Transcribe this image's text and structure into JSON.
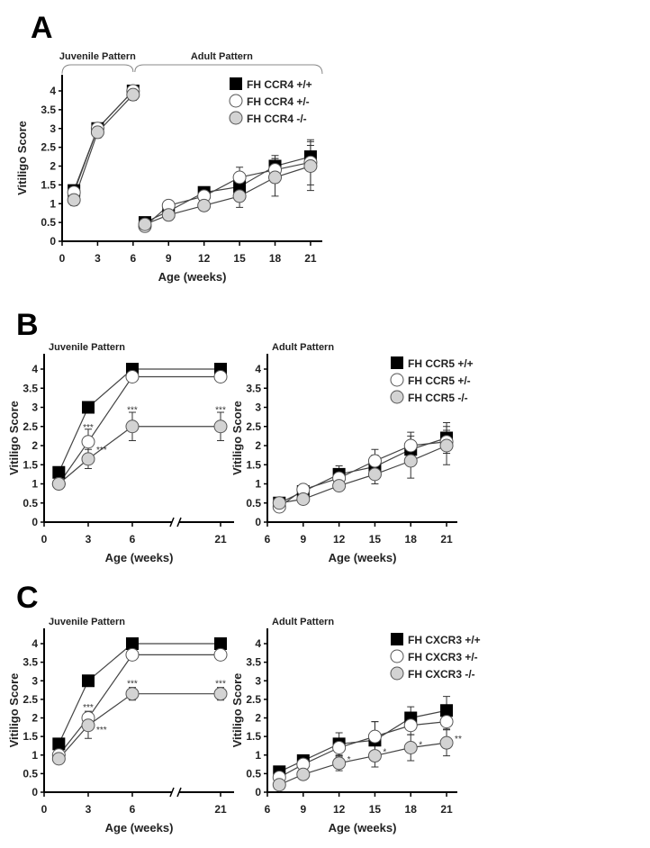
{
  "panels": [
    {
      "letter": "A"
    },
    {
      "letter": "B"
    },
    {
      "letter": "C"
    }
  ],
  "chart_data": [
    {
      "panel": "A",
      "type": "line",
      "headers": [
        "Juvenile Pattern",
        "Adult Pattern"
      ],
      "xlabel": "Age (weeks)",
      "ylabel": "Vitiligo Score",
      "x_ticks": [
        "0",
        "3",
        "6",
        "9",
        "12",
        "15",
        "18",
        "21"
      ],
      "y_ticks": [
        "0",
        "0.5",
        "1",
        "1.5",
        "2",
        "2.5",
        "3",
        "3.5",
        "4"
      ],
      "ylim": [
        0,
        4.3
      ],
      "legend": "top-right",
      "segment_break_after": 6,
      "series": [
        {
          "name": "FH CCR4 +/+",
          "marker": "square",
          "fill": "#000000",
          "x": [
            1,
            3,
            6,
            7,
            9,
            12,
            15,
            18,
            21
          ],
          "y": [
            1.35,
            3.0,
            4.0,
            0.5,
            0.8,
            1.3,
            1.45,
            2.0,
            2.25
          ],
          "err": [
            0.15,
            0.1,
            0.1,
            0.1,
            0.1,
            0.15,
            0.25,
            0.28,
            0.3
          ]
        },
        {
          "name": "FH CCR4 +/-",
          "marker": "circle",
          "fill": "#ffffff",
          "x": [
            1,
            3,
            6,
            7,
            9,
            12,
            15,
            18,
            21
          ],
          "y": [
            1.3,
            3.0,
            4.0,
            0.4,
            0.95,
            1.2,
            1.7,
            1.9,
            2.1
          ],
          "err": [
            0.15,
            0.1,
            0.1,
            0.1,
            0.1,
            0.15,
            0.27,
            0.3,
            0.6
          ]
        },
        {
          "name": "FH CCR4 -/-",
          "marker": "circle",
          "fill": "#d3d3d3",
          "x": [
            1,
            3,
            6,
            7,
            9,
            12,
            15,
            18,
            21
          ],
          "y": [
            1.1,
            2.9,
            3.9,
            0.45,
            0.7,
            0.95,
            1.2,
            1.7,
            2.0
          ],
          "err": [
            0.15,
            0.15,
            0.15,
            0.1,
            0.1,
            0.1,
            0.3,
            0.5,
            0.65
          ]
        }
      ],
      "annotations": []
    },
    {
      "panel": "B",
      "type": "line",
      "headers": [
        "Juvenile Pattern"
      ],
      "xlabel": "Age (weeks)",
      "ylabel": "Vitiligo Score",
      "x_ticks": [
        "0",
        "3",
        "6",
        "21"
      ],
      "axis_break": true,
      "y_ticks": [
        "0",
        "0.5",
        "1",
        "1.5",
        "2",
        "2.5",
        "3",
        "3.5",
        "4"
      ],
      "ylim": [
        0,
        4.3
      ],
      "series": [
        {
          "name": "FH CCR5 +/+",
          "marker": "square",
          "fill": "#000000",
          "x": [
            1,
            3,
            6,
            21
          ],
          "y": [
            1.3,
            3.0,
            4.0,
            4.0
          ],
          "err": [
            0,
            0,
            0,
            0
          ]
        },
        {
          "name": "FH CCR5 +/-",
          "marker": "circle",
          "fill": "#ffffff",
          "x": [
            1,
            3,
            6,
            21
          ],
          "y": [
            1.0,
            2.1,
            3.8,
            3.8
          ],
          "err": [
            0,
            0.33,
            0,
            0
          ]
        },
        {
          "name": "FH CCR5 -/-",
          "marker": "circle",
          "fill": "#d3d3d3",
          "x": [
            1,
            3,
            6,
            21
          ],
          "y": [
            1.0,
            1.65,
            2.5,
            2.5
          ],
          "err": [
            0,
            0.25,
            0.37,
            0.37
          ]
        }
      ],
      "annotations": [
        {
          "text": "***",
          "x": 3,
          "y": 2.5,
          "side": "above"
        },
        {
          "text": "***",
          "x": 3,
          "y": 1.95,
          "side": "right"
        },
        {
          "text": "***",
          "x": 6,
          "y": 2.95,
          "side": "above"
        },
        {
          "text": "***",
          "x": 21,
          "y": 2.95,
          "side": "above"
        }
      ]
    },
    {
      "panel": "B",
      "type": "line",
      "headers": [
        "Adult Pattern"
      ],
      "xlabel": "Age (weeks)",
      "ylabel": "Vitiligo Score",
      "x_ticks": [
        "6",
        "9",
        "12",
        "15",
        "18",
        "21"
      ],
      "y_ticks": [
        "0",
        "0.5",
        "1",
        "1.5",
        "2",
        "2.5",
        "3",
        "3.5",
        "4"
      ],
      "ylim": [
        0,
        4.3
      ],
      "legend": "top-right",
      "series": [
        {
          "name": "FH CCR5 +/+",
          "marker": "square",
          "fill": "#000000",
          "x": [
            7,
            9,
            12,
            15,
            18,
            21
          ],
          "y": [
            0.5,
            0.8,
            1.25,
            1.45,
            1.9,
            2.2
          ],
          "err": [
            0.08,
            0.1,
            0.22,
            0.3,
            0.35,
            0.4
          ]
        },
        {
          "name": "FH CCR5 +/-",
          "marker": "circle",
          "fill": "#ffffff",
          "x": [
            7,
            9,
            12,
            15,
            18,
            21
          ],
          "y": [
            0.4,
            0.85,
            1.15,
            1.6,
            2.0,
            2.1
          ],
          "err": [
            0.08,
            0.1,
            0.2,
            0.3,
            0.35,
            0.3
          ]
        },
        {
          "name": "FH CCR5 -/-",
          "marker": "circle",
          "fill": "#d3d3d3",
          "x": [
            7,
            9,
            12,
            15,
            18,
            21
          ],
          "y": [
            0.5,
            0.6,
            0.95,
            1.25,
            1.6,
            2.0
          ],
          "err": [
            0.08,
            0.1,
            0.1,
            0.25,
            0.45,
            0.5
          ]
        }
      ],
      "annotations": []
    },
    {
      "panel": "C",
      "type": "line",
      "headers": [
        "Juvenile Pattern"
      ],
      "xlabel": "Age (weeks)",
      "ylabel": "Vitiligo Score",
      "x_ticks": [
        "0",
        "3",
        "6",
        "21"
      ],
      "axis_break": true,
      "y_ticks": [
        "0",
        "0.5",
        "1",
        "1.5",
        "2",
        "2.5",
        "3",
        "3.5",
        "4"
      ],
      "ylim": [
        0,
        4.3
      ],
      "series": [
        {
          "name": "FH CXCR3 +/+",
          "marker": "square",
          "fill": "#000000",
          "x": [
            1,
            3,
            6,
            21
          ],
          "y": [
            1.3,
            3.0,
            4.0,
            4.0
          ],
          "err": [
            0,
            0,
            0,
            0
          ]
        },
        {
          "name": "FH CXCR3 +/-",
          "marker": "circle",
          "fill": "#ffffff",
          "x": [
            1,
            3,
            6,
            21
          ],
          "y": [
            1.0,
            2.0,
            3.7,
            3.7
          ],
          "err": [
            0,
            0.18,
            0,
            0
          ]
        },
        {
          "name": "FH CXCR3 -/-",
          "marker": "circle",
          "fill": "#d3d3d3",
          "x": [
            1,
            3,
            6,
            21
          ],
          "y": [
            0.9,
            1.8,
            2.65,
            2.65
          ],
          "err": [
            0,
            0.35,
            0.17,
            0.17
          ]
        }
      ],
      "annotations": [
        {
          "text": "***",
          "x": 3,
          "y": 2.3,
          "side": "above"
        },
        {
          "text": "***",
          "x": 3,
          "y": 1.75,
          "side": "right"
        },
        {
          "text": "***",
          "x": 6,
          "y": 2.95,
          "side": "above"
        },
        {
          "text": "***",
          "x": 21,
          "y": 2.95,
          "side": "above"
        }
      ]
    },
    {
      "panel": "C",
      "type": "line",
      "headers": [
        "Adult Pattern"
      ],
      "xlabel": "Age (weeks)",
      "ylabel": "Vitiligo Score",
      "x_ticks": [
        "6",
        "9",
        "12",
        "15",
        "18",
        "21"
      ],
      "y_ticks": [
        "0",
        "0.5",
        "1",
        "1.5",
        "2",
        "2.5",
        "3",
        "3.5",
        "4"
      ],
      "ylim": [
        0,
        4.3
      ],
      "legend": "top-right",
      "series": [
        {
          "name": "FH CXCR3 +/+",
          "marker": "square",
          "fill": "#000000",
          "x": [
            7,
            9,
            12,
            15,
            18,
            21
          ],
          "y": [
            0.55,
            0.85,
            1.3,
            1.4,
            2.0,
            2.2
          ],
          "err": [
            0.08,
            0.1,
            0.3,
            0.5,
            0.3,
            0.38
          ]
        },
        {
          "name": "FH CXCR3 +/-",
          "marker": "circle",
          "fill": "#ffffff",
          "x": [
            7,
            9,
            12,
            15,
            18,
            21
          ],
          "y": [
            0.4,
            0.75,
            1.2,
            1.5,
            1.8,
            1.9
          ],
          "err": [
            0.08,
            0.1,
            0.25,
            0.4,
            0.25,
            0.2
          ]
        },
        {
          "name": "FH CXCR3 -/-",
          "marker": "circle",
          "fill": "#d3d3d3",
          "x": [
            7,
            9,
            12,
            15,
            18,
            21
          ],
          "y": [
            0.2,
            0.48,
            0.78,
            0.98,
            1.2,
            1.33
          ],
          "err": [
            0.05,
            0.08,
            0.2,
            0.3,
            0.35,
            0.35
          ]
        }
      ],
      "annotations": [
        {
          "text": "*",
          "x": 12,
          "y": 0.95,
          "side": "right"
        },
        {
          "text": "*",
          "x": 15,
          "y": 1.15,
          "side": "right"
        },
        {
          "text": "*",
          "x": 18,
          "y": 1.35,
          "side": "right"
        },
        {
          "text": "**",
          "x": 21,
          "y": 1.5,
          "side": "right"
        }
      ]
    }
  ]
}
